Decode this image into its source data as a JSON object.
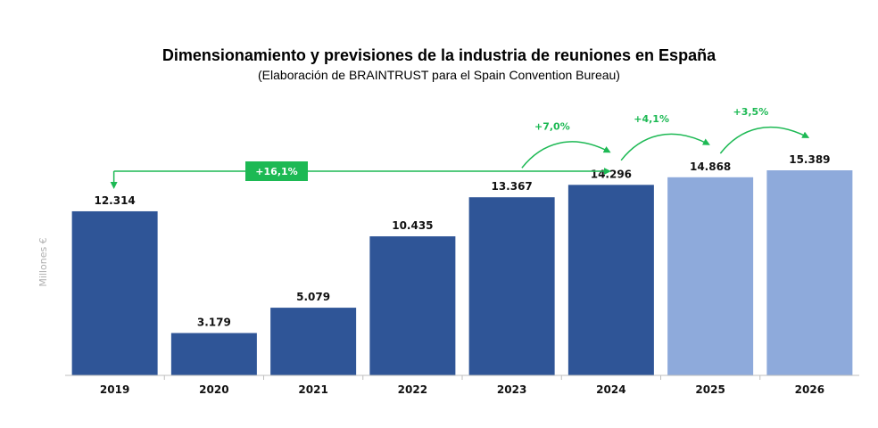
{
  "chart_data": {
    "type": "bar",
    "title": "Dimensionamiento y previsiones de la industria de reuniones en España",
    "subtitle": "(Elaboración de BRAINTRUST para el Spain Convention Bureau)",
    "ylabel": "Millones €",
    "xlabel": "",
    "categories": [
      "2019",
      "2020",
      "2021",
      "2022",
      "2023",
      "2024",
      "2025",
      "2026"
    ],
    "values": [
      12314,
      3179,
      5079,
      10435,
      13367,
      14296,
      14868,
      15389
    ],
    "value_labels": [
      "12.314",
      "3.179",
      "5.079",
      "10.435",
      "13.367",
      "14.296",
      "14.868",
      "15.389"
    ],
    "forecast": [
      false,
      false,
      false,
      false,
      false,
      false,
      true,
      true
    ],
    "ylim": [
      0,
      15389
    ],
    "grid": false,
    "colors": {
      "actual": "#2f5597",
      "forecast": "#8eaadb",
      "growth": "#1db954"
    },
    "annotations": {
      "overall": {
        "label": "+16,1%",
        "from": "2019",
        "to": "2024"
      },
      "yearly": [
        {
          "label": "+7,0%",
          "from": "2023",
          "to": "2024"
        },
        {
          "label": "+4,1%",
          "from": "2024",
          "to": "2025"
        },
        {
          "label": "+3,5%",
          "from": "2025",
          "to": "2026"
        }
      ]
    }
  }
}
